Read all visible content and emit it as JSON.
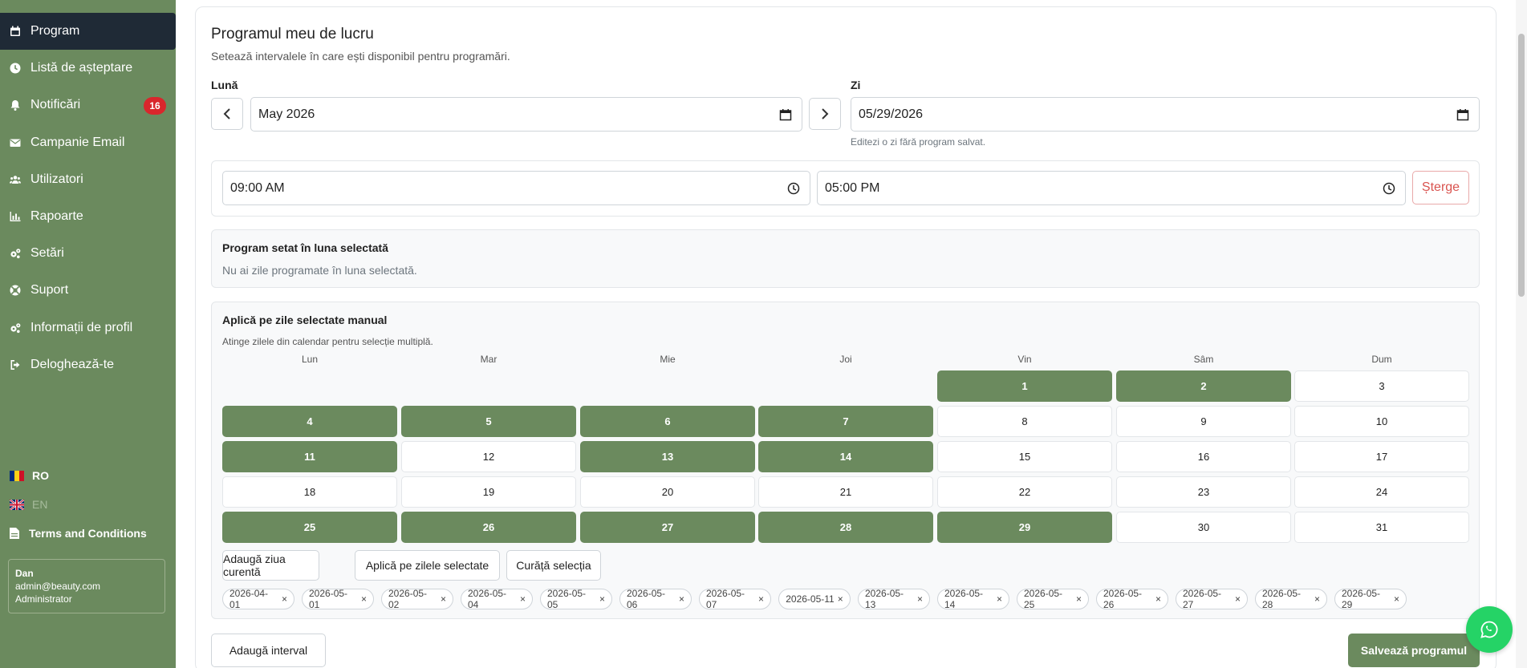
{
  "sidebar": {
    "items": [
      {
        "label": "Program",
        "icon": "calendar-icon"
      },
      {
        "label": "Listă de așteptare",
        "icon": "clock-icon"
      },
      {
        "label": "Notificări",
        "icon": "bell-icon",
        "badge": "16"
      },
      {
        "label": "Campanie Email",
        "icon": "envelope-icon"
      },
      {
        "label": "Utilizatori",
        "icon": "users-icon"
      },
      {
        "label": "Rapoarte",
        "icon": "chart-icon"
      },
      {
        "label": "Setări",
        "icon": "gears-icon"
      },
      {
        "label": "Suport",
        "icon": "lifebuoy-icon"
      },
      {
        "label": "Informații de profil",
        "icon": "gears-icon"
      },
      {
        "label": "Deloghează-te",
        "icon": "logout-icon"
      }
    ],
    "languages": [
      {
        "code": "RO",
        "active": true
      },
      {
        "code": "EN",
        "active": false
      }
    ],
    "terms": "Terms and Conditions",
    "user": {
      "name": "Dan",
      "email": "admin@beauty.com",
      "role": "Administrator"
    }
  },
  "main": {
    "title": "Programul meu de lucru",
    "subtitle": "Setează intervalele în care ești disponibil pentru programări.",
    "month_label": "Lună",
    "month_value": "May 2026",
    "day_label": "Zi",
    "day_value": "05/29/2026",
    "day_hint": "Editezi o zi fără program salvat.",
    "interval": {
      "start": "09:00 AM",
      "end": "05:00 PM",
      "delete_label": "Șterge"
    },
    "month_schedule": {
      "title": "Program setat în luna selectată",
      "text": "Nu ai zile programate în luna selectată."
    },
    "manual": {
      "title": "Aplică pe zile selectate manual",
      "hint": "Atinge zilele din calendar pentru selecție multiplă.",
      "weekdays": [
        "Lun",
        "Mar",
        "Mie",
        "Joi",
        "Vin",
        "Sâm",
        "Dum"
      ],
      "selected_days": [
        1,
        2,
        4,
        5,
        6,
        7,
        11,
        13,
        14,
        25,
        26,
        27,
        28,
        29
      ],
      "buttons": [
        "Adaugă ziua curentă",
        "Aplică pe zilele selectate",
        "Curăță selecția"
      ],
      "chips": [
        "2026-04-01",
        "2026-05-01",
        "2026-05-02",
        "2026-05-04",
        "2026-05-05",
        "2026-05-06",
        "2026-05-07",
        "2026-05-11",
        "2026-05-13",
        "2026-05-14",
        "2026-05-25",
        "2026-05-26",
        "2026-05-27",
        "2026-05-28",
        "2026-05-29"
      ]
    },
    "add_interval_label": "Adaugă interval",
    "save_label": "Salvează programul"
  },
  "colors": {
    "sidebar": "#6b8a5e",
    "active_nav": "#1f2a36",
    "selected_day": "#6b8a5e",
    "badge": "#d9262c",
    "whatsapp": "#25d366"
  }
}
